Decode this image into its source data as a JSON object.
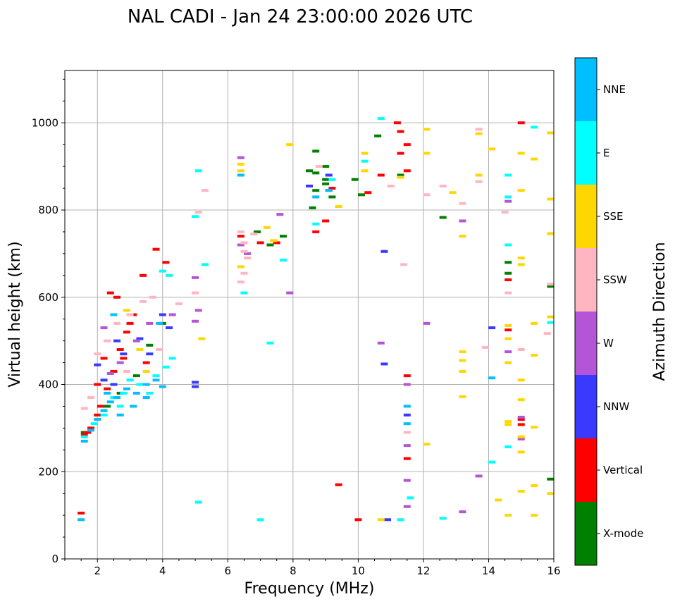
{
  "chart_data": {
    "type": "scatter",
    "title": "NAL CADI - Jan 24 23:00:00 2026 UTC",
    "xlabel": "Frequency (MHz)",
    "ylabel": "Virtual height (km)",
    "xlim": [
      1,
      16
    ],
    "ylim": [
      0,
      1120
    ],
    "xticks": [
      2,
      4,
      6,
      8,
      10,
      12,
      14,
      16
    ],
    "yticks": [
      0,
      200,
      400,
      600,
      800,
      1000
    ],
    "grid": true,
    "colorbar": {
      "title": "Azimuth Direction",
      "entries": [
        {
          "name": "X-mode",
          "color": "#008000"
        },
        {
          "name": "Vertical",
          "color": "#ff0000"
        },
        {
          "name": "NNW",
          "color": "#3a3aff"
        },
        {
          "name": "W",
          "color": "#b355d6"
        },
        {
          "name": "SSW",
          "color": "#ffb6c1"
        },
        {
          "name": "SSE",
          "color": "#ffd700"
        },
        {
          "name": "E",
          "color": "#00ffff"
        },
        {
          "name": "NNE",
          "color": "#00bfff"
        }
      ]
    },
    "series": [
      {
        "name": "X-mode",
        "points": [
          [
            8.7,
            935
          ],
          [
            8.7,
            885
          ],
          [
            9.0,
            900
          ],
          [
            9.0,
            870
          ],
          [
            9.0,
            860
          ],
          [
            8.7,
            845
          ],
          [
            8.6,
            805
          ],
          [
            9.2,
            830
          ],
          [
            10.6,
            970
          ],
          [
            11.3,
            880
          ],
          [
            9.9,
            870
          ],
          [
            10.1,
            835
          ],
          [
            12.6,
            783
          ],
          [
            14.6,
            680
          ],
          [
            14.6,
            655
          ],
          [
            15.9,
            625
          ],
          [
            15.9,
            183
          ],
          [
            6.9,
            750
          ],
          [
            7.3,
            720
          ],
          [
            7.7,
            740
          ],
          [
            2.7,
            380
          ],
          [
            3.2,
            420
          ],
          [
            3.6,
            490
          ],
          [
            4.0,
            540
          ],
          [
            8.5,
            890
          ],
          [
            9.1,
            845
          ],
          [
            1.6,
            290
          ],
          [
            2.3,
            350
          ]
        ]
      },
      {
        "name": "Vertical",
        "points": [
          [
            1.6,
            285
          ],
          [
            1.7,
            290
          ],
          [
            1.8,
            300
          ],
          [
            2.0,
            330
          ],
          [
            2.1,
            350
          ],
          [
            2.3,
            390
          ],
          [
            2.5,
            430
          ],
          [
            2.7,
            480
          ],
          [
            2.9,
            520
          ],
          [
            3.1,
            560
          ],
          [
            3.4,
            650
          ],
          [
            3.8,
            710
          ],
          [
            4.1,
            680
          ],
          [
            2.4,
            610
          ],
          [
            2.6,
            600
          ],
          [
            3.0,
            540
          ],
          [
            1.5,
            105
          ],
          [
            2.2,
            460
          ],
          [
            2.0,
            400
          ],
          [
            9.4,
            170
          ],
          [
            10.0,
            90
          ],
          [
            11.2,
            1000
          ],
          [
            11.3,
            980
          ],
          [
            11.3,
            930
          ],
          [
            11.5,
            950
          ],
          [
            11.5,
            890
          ],
          [
            10.7,
            880
          ],
          [
            10.3,
            840
          ],
          [
            9.2,
            850
          ],
          [
            9.0,
            775
          ],
          [
            8.7,
            750
          ],
          [
            11.5,
            420
          ],
          [
            11.5,
            230
          ],
          [
            14.6,
            525
          ],
          [
            14.6,
            640
          ],
          [
            15.0,
            1000
          ],
          [
            15.0,
            320
          ],
          [
            15.0,
            308
          ],
          [
            6.4,
            740
          ],
          [
            7.0,
            725
          ],
          [
            7.5,
            725
          ],
          [
            3.5,
            450
          ],
          [
            2.8,
            460
          ]
        ]
      },
      {
        "name": "NNW",
        "points": [
          [
            2.0,
            445
          ],
          [
            2.2,
            410
          ],
          [
            2.5,
            400
          ],
          [
            2.8,
            470
          ],
          [
            3.3,
            505
          ],
          [
            3.6,
            470
          ],
          [
            4.0,
            560
          ],
          [
            4.2,
            530
          ],
          [
            5.0,
            405
          ],
          [
            5.0,
            395
          ],
          [
            10.8,
            705
          ],
          [
            10.8,
            447
          ],
          [
            10.9,
            90
          ],
          [
            8.5,
            855
          ],
          [
            9.1,
            880
          ],
          [
            11.5,
            330
          ],
          [
            14.1,
            530
          ],
          [
            2.6,
            500
          ]
        ]
      },
      {
        "name": "W",
        "points": [
          [
            2.2,
            530
          ],
          [
            2.7,
            450
          ],
          [
            3.2,
            500
          ],
          [
            3.6,
            540
          ],
          [
            4.3,
            560
          ],
          [
            5.0,
            545
          ],
          [
            5.1,
            570
          ],
          [
            6.4,
            920
          ],
          [
            6.4,
            720
          ],
          [
            6.6,
            700
          ],
          [
            7.6,
            790
          ],
          [
            7.9,
            610
          ],
          [
            10.7,
            495
          ],
          [
            12.1,
            540
          ],
          [
            11.5,
            260
          ],
          [
            11.5,
            400
          ],
          [
            11.5,
            180
          ],
          [
            11.5,
            120
          ],
          [
            13.2,
            775
          ],
          [
            13.2,
            108
          ],
          [
            13.7,
            190
          ],
          [
            14.6,
            820
          ],
          [
            14.6,
            475
          ],
          [
            15.0,
            325
          ],
          [
            15.0,
            275
          ],
          [
            5.0,
            645
          ],
          [
            2.4,
            425
          ]
        ]
      },
      {
        "name": "SSW",
        "points": [
          [
            1.6,
            345
          ],
          [
            1.8,
            370
          ],
          [
            2.0,
            470
          ],
          [
            2.3,
            500
          ],
          [
            2.6,
            540
          ],
          [
            3.0,
            560
          ],
          [
            3.4,
            590
          ],
          [
            3.7,
            600
          ],
          [
            4.5,
            585
          ],
          [
            5.0,
            610
          ],
          [
            5.3,
            845
          ],
          [
            5.1,
            795
          ],
          [
            6.4,
            750
          ],
          [
            6.5,
            725
          ],
          [
            6.5,
            705
          ],
          [
            6.6,
            690
          ],
          [
            6.8,
            745
          ],
          [
            6.5,
            655
          ],
          [
            6.4,
            635
          ],
          [
            8.8,
            900
          ],
          [
            11.0,
            855
          ],
          [
            12.1,
            835
          ],
          [
            12.6,
            855
          ],
          [
            13.2,
            815
          ],
          [
            13.7,
            985
          ],
          [
            13.7,
            865
          ],
          [
            13.9,
            485
          ],
          [
            14.5,
            795
          ],
          [
            14.6,
            610
          ],
          [
            15.0,
            480
          ],
          [
            15.9,
            630
          ],
          [
            15.8,
            517
          ],
          [
            11.5,
            290
          ],
          [
            11.4,
            675
          ],
          [
            3.9,
            480
          ],
          [
            2.9,
            430
          ]
        ]
      },
      {
        "name": "SSE",
        "points": [
          [
            2.9,
            570
          ],
          [
            3.3,
            480
          ],
          [
            3.5,
            430
          ],
          [
            7.9,
            950
          ],
          [
            6.4,
            905
          ],
          [
            6.4,
            890
          ],
          [
            6.4,
            670
          ],
          [
            7.4,
            730
          ],
          [
            10.2,
            930
          ],
          [
            10.2,
            890
          ],
          [
            11.3,
            875
          ],
          [
            12.1,
            985
          ],
          [
            12.1,
            930
          ],
          [
            12.1,
            263
          ],
          [
            12.9,
            840
          ],
          [
            13.2,
            740
          ],
          [
            13.2,
            475
          ],
          [
            13.2,
            455
          ],
          [
            13.2,
            430
          ],
          [
            13.2,
            372
          ],
          [
            13.7,
            880
          ],
          [
            13.7,
            975
          ],
          [
            14.1,
            940
          ],
          [
            14.6,
            535
          ],
          [
            14.6,
            505
          ],
          [
            14.6,
            450
          ],
          [
            14.6,
            315
          ],
          [
            14.6,
            308
          ],
          [
            14.6,
            100
          ],
          [
            15.0,
            930
          ],
          [
            15.0,
            845
          ],
          [
            15.0,
            690
          ],
          [
            15.0,
            675
          ],
          [
            15.0,
            410
          ],
          [
            15.0,
            365
          ],
          [
            15.0,
            280
          ],
          [
            15.0,
            245
          ],
          [
            15.0,
            155
          ],
          [
            15.4,
            917
          ],
          [
            15.4,
            540
          ],
          [
            15.4,
            467
          ],
          [
            15.4,
            302
          ],
          [
            15.4,
            168
          ],
          [
            15.4,
            100
          ],
          [
            15.9,
            977
          ],
          [
            15.9,
            825
          ],
          [
            15.9,
            746
          ],
          [
            15.9,
            555
          ],
          [
            15.9,
            150
          ],
          [
            14.3,
            135
          ],
          [
            10.7,
            90
          ],
          [
            7.2,
            760
          ],
          [
            5.2,
            505
          ],
          [
            9.4,
            808
          ]
        ]
      },
      {
        "name": "E",
        "points": [
          [
            1.6,
            280
          ],
          [
            1.9,
            310
          ],
          [
            2.2,
            330
          ],
          [
            2.5,
            370
          ],
          [
            2.8,
            380
          ],
          [
            3.0,
            410
          ],
          [
            3.3,
            400
          ],
          [
            3.6,
            380
          ],
          [
            3.8,
            420
          ],
          [
            4.1,
            440
          ],
          [
            4.3,
            460
          ],
          [
            4.2,
            650
          ],
          [
            4.0,
            660
          ],
          [
            5.3,
            675
          ],
          [
            5.1,
            890
          ],
          [
            5.0,
            785
          ],
          [
            5.1,
            130
          ],
          [
            6.5,
            610
          ],
          [
            7.0,
            90
          ],
          [
            7.3,
            495
          ],
          [
            7.7,
            685
          ],
          [
            8.7,
            768
          ],
          [
            10.2,
            912
          ],
          [
            10.7,
            1010
          ],
          [
            11.3,
            90
          ],
          [
            11.6,
            140
          ],
          [
            12.6,
            93
          ],
          [
            14.1,
            222
          ],
          [
            14.6,
            880
          ],
          [
            14.6,
            830
          ],
          [
            14.6,
            720
          ],
          [
            14.6,
            257
          ],
          [
            15.9,
            542
          ],
          [
            15.4,
            990
          ],
          [
            9.2,
            870
          ],
          [
            2.7,
            350
          ]
        ]
      },
      {
        "name": "NNE",
        "points": [
          [
            1.6,
            270
          ],
          [
            1.8,
            295
          ],
          [
            2.0,
            320
          ],
          [
            2.2,
            340
          ],
          [
            2.4,
            360
          ],
          [
            2.6,
            370
          ],
          [
            2.9,
            390
          ],
          [
            3.2,
            380
          ],
          [
            3.5,
            400
          ],
          [
            3.8,
            410
          ],
          [
            4.0,
            395
          ],
          [
            2.3,
            380
          ],
          [
            2.7,
            330
          ],
          [
            3.1,
            350
          ],
          [
            3.5,
            370
          ],
          [
            2.5,
            560
          ],
          [
            3.9,
            540
          ],
          [
            1.5,
            90
          ],
          [
            11.5,
            310
          ],
          [
            11.5,
            350
          ],
          [
            14.1,
            415
          ],
          [
            9.1,
            845
          ],
          [
            8.7,
            830
          ],
          [
            6.4,
            880
          ]
        ]
      }
    ]
  }
}
